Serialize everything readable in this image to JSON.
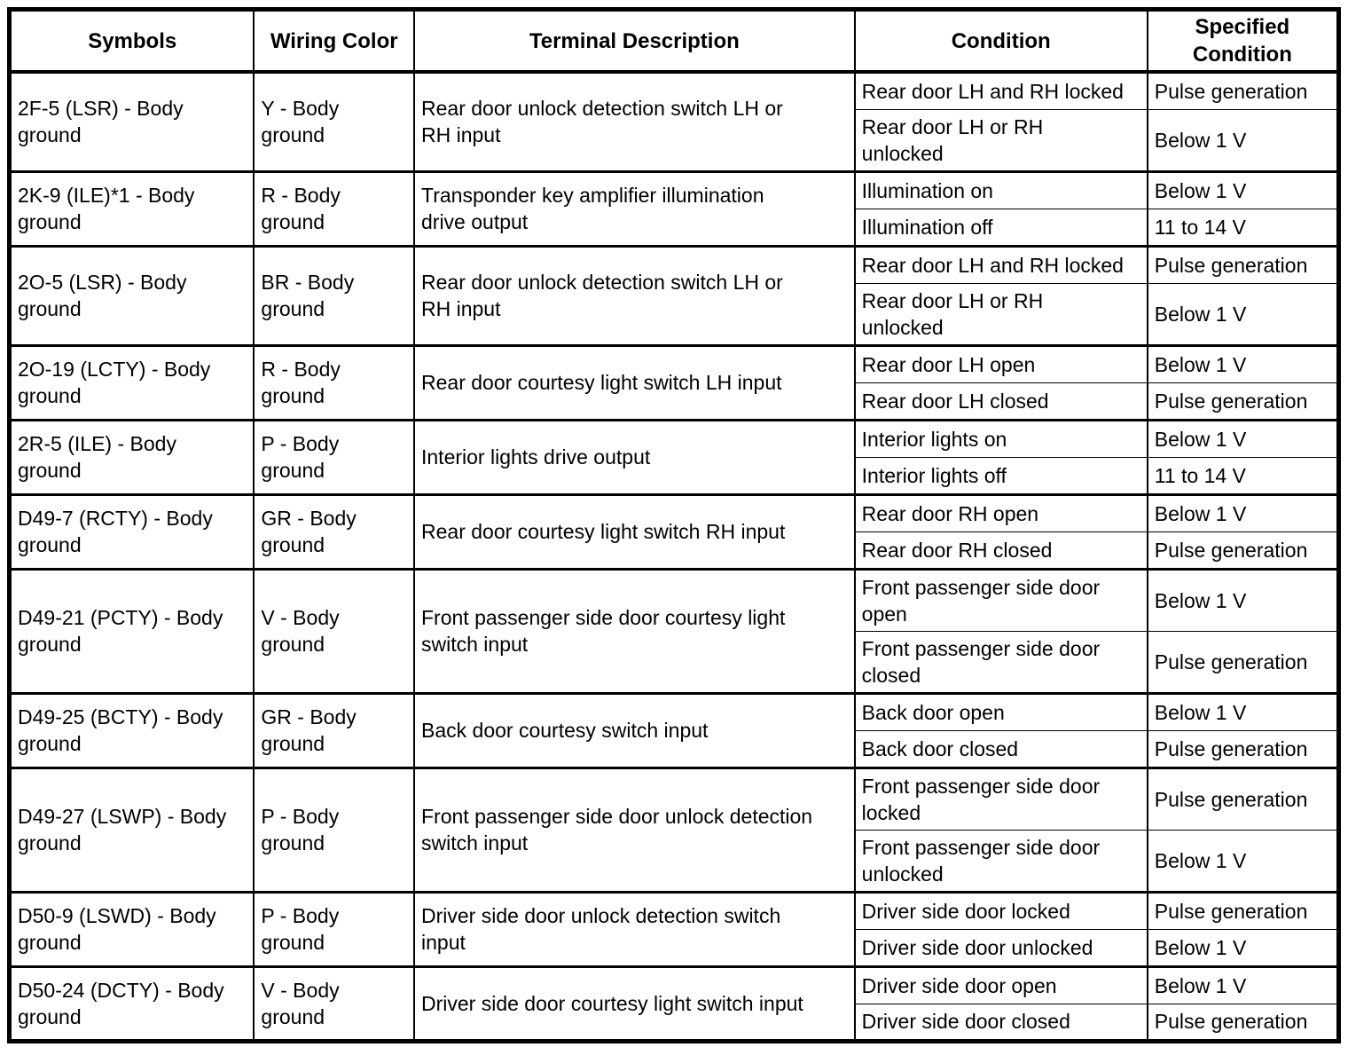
{
  "table": {
    "headers": {
      "symbols": "Symbols",
      "wiring_color": "Wiring Color",
      "terminal_description": "Terminal Description",
      "condition": "Condition",
      "specified_condition": "Specified Condition"
    },
    "rows": [
      {
        "symbols": "2F-5 (LSR) - Body\nground",
        "wiring_color": "Y - Body\nground",
        "terminal_description": "Rear door unlock detection switch LH or\nRH input",
        "conditions": [
          {
            "condition": "Rear door LH and RH locked",
            "specified_condition": "Pulse generation"
          },
          {
            "condition": "Rear door LH or RH\nunlocked",
            "specified_condition": "Below 1 V"
          }
        ]
      },
      {
        "symbols": "2K-9 (ILE)*1 - Body\nground",
        "wiring_color": "R - Body\nground",
        "terminal_description": "Transponder key amplifier illumination\ndrive output",
        "conditions": [
          {
            "condition": "Illumination on",
            "specified_condition": "Below 1 V"
          },
          {
            "condition": "Illumination off",
            "specified_condition": "11 to 14 V"
          }
        ]
      },
      {
        "symbols": "2O-5 (LSR) - Body\nground",
        "wiring_color": "BR - Body\nground",
        "terminal_description": "Rear door unlock detection switch LH or\nRH input",
        "conditions": [
          {
            "condition": "Rear door LH and RH locked",
            "specified_condition": "Pulse generation"
          },
          {
            "condition": "Rear door LH or RH\nunlocked",
            "specified_condition": "Below 1 V"
          }
        ]
      },
      {
        "symbols": "2O-19 (LCTY) - Body\nground",
        "wiring_color": "R - Body\nground",
        "terminal_description": "Rear door courtesy light switch LH input",
        "conditions": [
          {
            "condition": "Rear door LH open",
            "specified_condition": "Below 1 V"
          },
          {
            "condition": "Rear door LH closed",
            "specified_condition": "Pulse generation"
          }
        ]
      },
      {
        "symbols": "2R-5 (ILE) - Body\nground",
        "wiring_color": "P - Body\nground",
        "terminal_description": "Interior lights drive output",
        "conditions": [
          {
            "condition": "Interior lights on",
            "specified_condition": "Below 1 V"
          },
          {
            "condition": "Interior lights off",
            "specified_condition": "11 to 14 V"
          }
        ]
      },
      {
        "symbols": "D49-7 (RCTY) - Body\nground",
        "wiring_color": "GR - Body\nground",
        "terminal_description": "Rear door courtesy light switch RH input",
        "conditions": [
          {
            "condition": "Rear door RH open",
            "specified_condition": "Below 1 V"
          },
          {
            "condition": "Rear door RH closed",
            "specified_condition": "Pulse generation"
          }
        ]
      },
      {
        "symbols": "D49-21 (PCTY) - Body\nground",
        "wiring_color": "V - Body\nground",
        "terminal_description": "Front passenger side door courtesy light\nswitch input",
        "conditions": [
          {
            "condition": "Front passenger side door\nopen",
            "specified_condition": "Below 1 V"
          },
          {
            "condition": "Front passenger side door\nclosed",
            "specified_condition": "Pulse generation"
          }
        ]
      },
      {
        "symbols": "D49-25 (BCTY) - Body\nground",
        "wiring_color": "GR - Body\nground",
        "terminal_description": "Back door courtesy switch input",
        "conditions": [
          {
            "condition": "Back door open",
            "specified_condition": "Below 1 V"
          },
          {
            "condition": "Back door closed",
            "specified_condition": "Pulse generation"
          }
        ]
      },
      {
        "symbols": "D49-27 (LSWP) - Body\nground",
        "wiring_color": "P - Body\nground",
        "terminal_description": "Front passenger side door unlock detection\nswitch input",
        "conditions": [
          {
            "condition": "Front passenger side door\nlocked",
            "specified_condition": "Pulse generation"
          },
          {
            "condition": "Front passenger side door\nunlocked",
            "specified_condition": "Below 1 V"
          }
        ]
      },
      {
        "symbols": "D50-9 (LSWD) - Body\nground",
        "wiring_color": "P - Body\nground",
        "terminal_description": "Driver side door unlock detection switch\ninput",
        "conditions": [
          {
            "condition": "Driver side door locked",
            "specified_condition": "Pulse generation"
          },
          {
            "condition": "Driver side door unlocked",
            "specified_condition": "Below 1 V"
          }
        ]
      },
      {
        "symbols": "D50-24 (DCTY) - Body\nground",
        "wiring_color": "V - Body\nground",
        "terminal_description": "Driver side door courtesy light switch input",
        "conditions": [
          {
            "condition": "Driver side door open",
            "specified_condition": "Below 1 V"
          },
          {
            "condition": "Driver side door closed",
            "specified_condition": "Pulse generation"
          }
        ]
      }
    ]
  }
}
